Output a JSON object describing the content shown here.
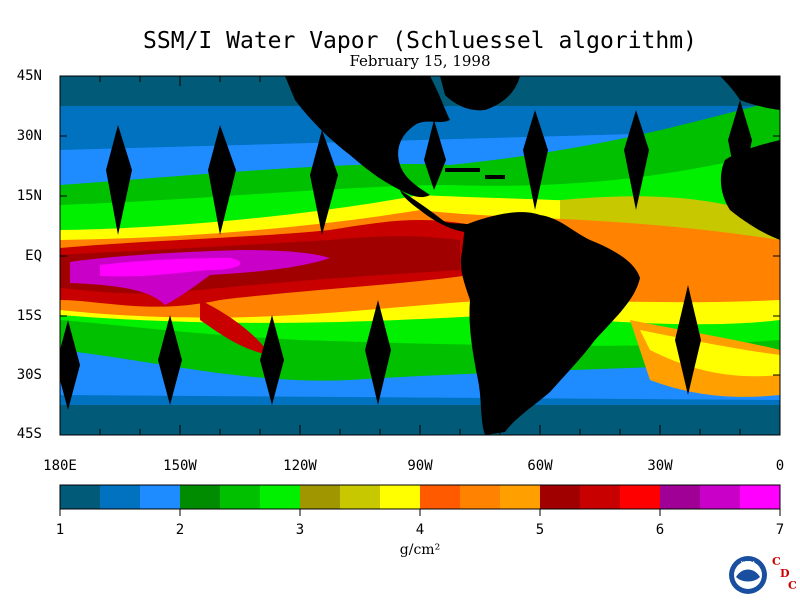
{
  "title": "SSM/I Water Vapor (Schluessel algorithm)",
  "subtitle": "February 15, 1998",
  "lat_labels": [
    "45N",
    "30N",
    "15N",
    "EQ",
    "15S",
    "30S",
    "45S"
  ],
  "lon_labels": [
    "180E",
    "150W",
    "120W",
    "90W",
    "60W",
    "30W",
    "0"
  ],
  "colorbar": {
    "min": 1,
    "max": 7,
    "labels": [
      "1",
      "2",
      "3",
      "4",
      "5",
      "6",
      "7"
    ],
    "colors": [
      "#005a78",
      "#0072c0",
      "#1e8cff",
      "#008c00",
      "#00c000",
      "#00f000",
      "#a09600",
      "#c8c800",
      "#ffff00",
      "#ff5a00",
      "#ff8200",
      "#ffa000",
      "#a00000",
      "#c80000",
      "#ff0000",
      "#a00096",
      "#c800c8",
      "#ff00ff"
    ],
    "units": "g/cm²"
  },
  "land_color": "#000000",
  "logo": {
    "noaa": "NOAA",
    "cdc_letters": [
      "C",
      "D",
      "C"
    ]
  }
}
